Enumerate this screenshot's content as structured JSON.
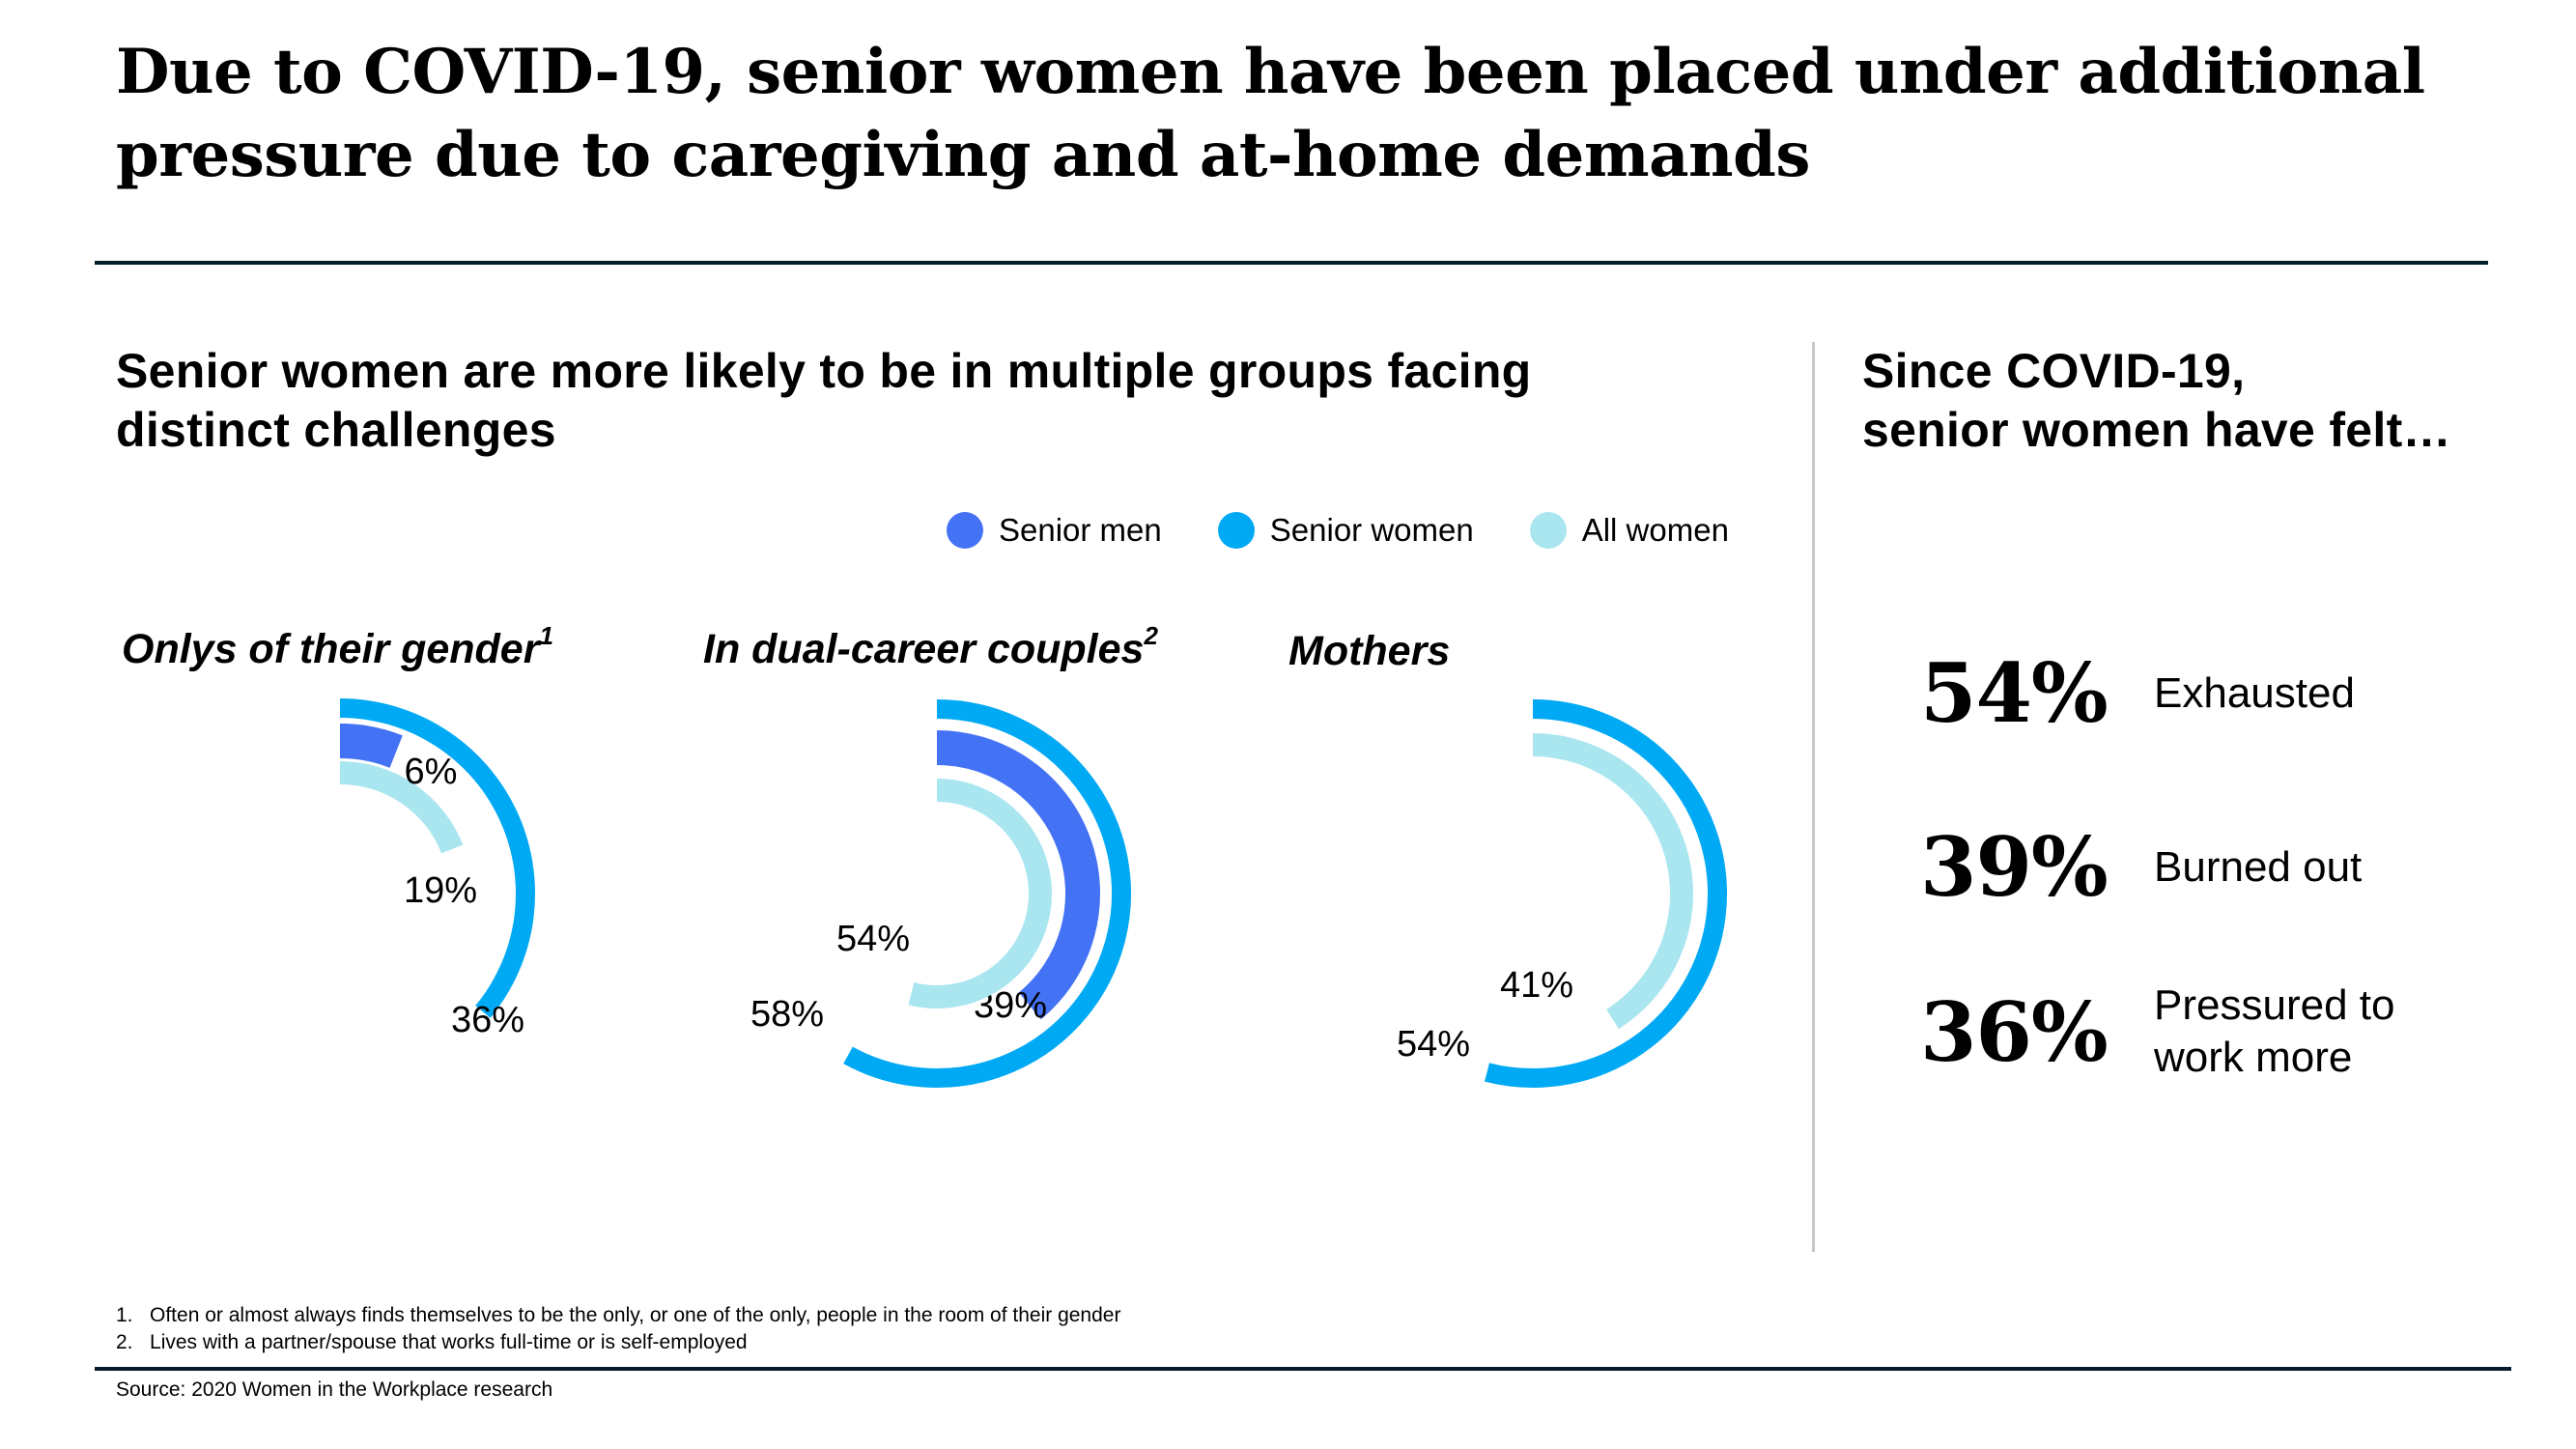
{
  "title": "Due to COVID-19, senior women have been placed under additional pressure due to caregiving and at-home demands",
  "left_section": {
    "title": "Senior women are more likely to be in multiple groups facing distinct challenges"
  },
  "right_section": {
    "title_line1": "Since COVID-19,",
    "title_line2": "senior women have felt…",
    "stats": [
      {
        "value": "54%",
        "label": "Exhausted"
      },
      {
        "value": "39%",
        "label": "Burned out"
      },
      {
        "value": "36%",
        "label": "Pressured to work more"
      }
    ]
  },
  "legend": [
    {
      "label": "Senior men",
      "color": "#4472f5"
    },
    {
      "label": "Senior women",
      "color": "#00a9f4"
    },
    {
      "label": "All women",
      "color": "#aae6f0"
    }
  ],
  "chart_data": [
    {
      "type": "radial-bar",
      "title": "Onlys of their gender",
      "title_sup": "1",
      "series": [
        {
          "name": "Senior women",
          "value": 36,
          "label": "36%"
        },
        {
          "name": "All women",
          "value": 19,
          "label": "19%"
        },
        {
          "name": "Senior men",
          "value": 6,
          "label": "6%"
        }
      ]
    },
    {
      "type": "radial-bar",
      "title": "In dual-career couples",
      "title_sup": "2",
      "series": [
        {
          "name": "Senior women",
          "value": 58,
          "label": "58%"
        },
        {
          "name": "Senior men",
          "value": 39,
          "label": "39%"
        },
        {
          "name": "All women",
          "value": 54,
          "label": "54%"
        }
      ]
    },
    {
      "type": "radial-bar",
      "title": "Mothers",
      "title_sup": "",
      "series": [
        {
          "name": "Senior women",
          "value": 54,
          "label": "54%"
        },
        {
          "name": "All women",
          "value": 41,
          "label": "41%"
        }
      ]
    }
  ],
  "footnotes": [
    "1.   Often or almost always finds themselves to be the only, or one of the only, people in the room of their gender",
    "2.   Lives with a partner/spouse that works full-time or is self-employed"
  ],
  "source": "Source: 2020 Women in the Workplace research"
}
